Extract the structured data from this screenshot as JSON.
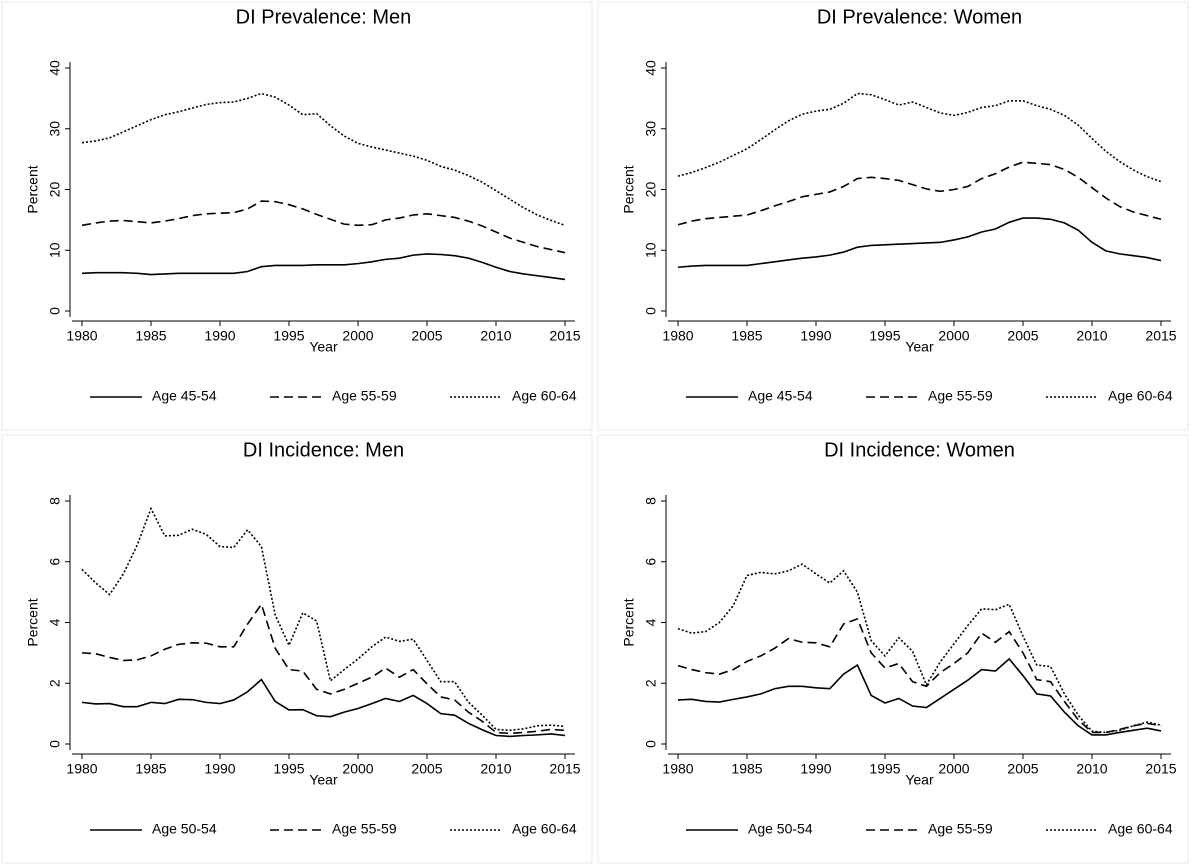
{
  "chart_data": [
    {
      "type": "line",
      "title": "DI Prevalence: Men",
      "xlabel": "Year",
      "ylabel": "Percent",
      "x": [
        1980,
        1981,
        1982,
        1983,
        1984,
        1985,
        1986,
        1987,
        1988,
        1989,
        1990,
        1991,
        1992,
        1993,
        1994,
        1995,
        1996,
        1997,
        1998,
        1999,
        2000,
        2001,
        2002,
        2003,
        2004,
        2005,
        2006,
        2007,
        2008,
        2009,
        2010,
        2011,
        2012,
        2013,
        2014,
        2015
      ],
      "xlim": [
        1980,
        2015
      ],
      "xticks": [
        1980,
        1985,
        1990,
        1995,
        2000,
        2005,
        2010,
        2015
      ],
      "ylim": [
        0,
        40
      ],
      "yticks": [
        0,
        10,
        20,
        30,
        40
      ],
      "series": [
        {
          "name": "Age 45-54",
          "color": "#000000",
          "dash": "solid",
          "values": [
            6.2,
            6.3,
            6.3,
            6.3,
            6.2,
            6.0,
            6.1,
            6.2,
            6.2,
            6.2,
            6.2,
            6.2,
            6.5,
            7.3,
            7.5,
            7.5,
            7.5,
            7.6,
            7.6,
            7.6,
            7.8,
            8.1,
            8.5,
            8.7,
            9.2,
            9.4,
            9.3,
            9.1,
            8.7,
            8.0,
            7.2,
            6.5,
            6.1,
            5.8,
            5.5,
            5.2
          ]
        },
        {
          "name": "Age 55-59",
          "color": "#000000",
          "dash": "dashed",
          "values": [
            14.1,
            14.5,
            14.8,
            14.9,
            14.7,
            14.5,
            14.8,
            15.2,
            15.7,
            16.0,
            16.1,
            16.2,
            16.8,
            18.1,
            18.0,
            17.5,
            16.8,
            15.9,
            15.1,
            14.3,
            14.1,
            14.2,
            15.0,
            15.3,
            15.8,
            16.0,
            15.7,
            15.4,
            14.8,
            14.0,
            13.0,
            12.0,
            11.3,
            10.6,
            10.1,
            9.6
          ]
        },
        {
          "name": "Age 60-64",
          "color": "#000000",
          "dash": "dotted",
          "values": [
            27.7,
            28.0,
            28.5,
            29.5,
            30.5,
            31.5,
            32.3,
            32.8,
            33.4,
            34.0,
            34.3,
            34.4,
            35.0,
            35.8,
            35.2,
            33.9,
            32.3,
            32.5,
            30.5,
            28.8,
            27.6,
            27.0,
            26.5,
            26.0,
            25.5,
            24.8,
            23.8,
            23.2,
            22.3,
            21.2,
            19.8,
            18.4,
            17.0,
            15.8,
            14.9,
            14.1
          ]
        }
      ]
    },
    {
      "type": "line",
      "title": "DI Prevalence: Women",
      "xlabel": "Year",
      "ylabel": "Percent",
      "x": [
        1980,
        1981,
        1982,
        1983,
        1984,
        1985,
        1986,
        1987,
        1988,
        1989,
        1990,
        1991,
        1992,
        1993,
        1994,
        1995,
        1996,
        1997,
        1998,
        1999,
        2000,
        2001,
        2002,
        2003,
        2004,
        2005,
        2006,
        2007,
        2008,
        2009,
        2010,
        2011,
        2012,
        2013,
        2014,
        2015
      ],
      "xlim": [
        1980,
        2015
      ],
      "xticks": [
        1980,
        1985,
        1990,
        1995,
        2000,
        2005,
        2010,
        2015
      ],
      "ylim": [
        0,
        40
      ],
      "yticks": [
        0,
        10,
        20,
        30,
        40
      ],
      "series": [
        {
          "name": "Age 45-54",
          "color": "#000000",
          "dash": "solid",
          "values": [
            7.2,
            7.4,
            7.5,
            7.5,
            7.5,
            7.5,
            7.8,
            8.1,
            8.4,
            8.7,
            8.9,
            9.2,
            9.7,
            10.5,
            10.8,
            10.9,
            11.0,
            11.1,
            11.2,
            11.3,
            11.7,
            12.2,
            13.0,
            13.5,
            14.6,
            15.3,
            15.3,
            15.1,
            14.5,
            13.3,
            11.3,
            9.9,
            9.4,
            9.1,
            8.8,
            8.3
          ]
        },
        {
          "name": "Age 55-59",
          "color": "#000000",
          "dash": "dashed",
          "values": [
            14.2,
            14.8,
            15.2,
            15.4,
            15.6,
            15.8,
            16.5,
            17.3,
            18.0,
            18.8,
            19.2,
            19.6,
            20.5,
            21.8,
            22.0,
            21.8,
            21.5,
            20.8,
            20.1,
            19.7,
            20.0,
            20.5,
            21.8,
            22.6,
            23.7,
            24.5,
            24.3,
            24.1,
            23.3,
            22.0,
            20.3,
            18.6,
            17.2,
            16.3,
            15.7,
            15.1
          ]
        },
        {
          "name": "Age 60-64",
          "color": "#000000",
          "dash": "dotted",
          "values": [
            22.2,
            22.8,
            23.6,
            24.5,
            25.6,
            26.7,
            28.2,
            29.8,
            31.3,
            32.4,
            32.9,
            33.2,
            34.2,
            35.8,
            35.6,
            34.8,
            33.9,
            34.4,
            33.5,
            32.6,
            32.2,
            32.7,
            33.5,
            33.8,
            34.6,
            34.6,
            33.8,
            33.2,
            32.2,
            30.6,
            28.4,
            26.3,
            24.6,
            23.2,
            22.1,
            21.3
          ]
        }
      ]
    },
    {
      "type": "line",
      "title": "DI Incidence: Men",
      "xlabel": "Year",
      "ylabel": "Percent",
      "x": [
        1980,
        1981,
        1982,
        1983,
        1984,
        1985,
        1986,
        1987,
        1988,
        1989,
        1990,
        1991,
        1992,
        1993,
        1994,
        1995,
        1996,
        1997,
        1998,
        1999,
        2000,
        2001,
        2002,
        2003,
        2004,
        2005,
        2006,
        2007,
        2008,
        2009,
        2010,
        2011,
        2012,
        2013,
        2014,
        2015
      ],
      "xlim": [
        1980,
        2015
      ],
      "xticks": [
        1980,
        1985,
        1990,
        1995,
        2000,
        2005,
        2010,
        2015
      ],
      "ylim": [
        0,
        8
      ],
      "yticks": [
        0,
        2,
        4,
        6,
        8
      ],
      "series": [
        {
          "name": "Age 50-54",
          "color": "#000000",
          "dash": "solid",
          "values": [
            1.37,
            1.32,
            1.33,
            1.23,
            1.23,
            1.37,
            1.33,
            1.47,
            1.46,
            1.37,
            1.33,
            1.45,
            1.72,
            2.12,
            1.4,
            1.12,
            1.13,
            0.93,
            0.9,
            1.05,
            1.17,
            1.33,
            1.5,
            1.4,
            1.6,
            1.33,
            1.0,
            0.95,
            0.68,
            0.47,
            0.28,
            0.25,
            0.28,
            0.3,
            0.33,
            0.28
          ]
        },
        {
          "name": "Age 55-59",
          "color": "#000000",
          "dash": "dashed",
          "values": [
            3.0,
            2.97,
            2.85,
            2.75,
            2.77,
            2.9,
            3.12,
            3.28,
            3.33,
            3.32,
            3.2,
            3.2,
            3.95,
            4.6,
            3.15,
            2.45,
            2.4,
            1.8,
            1.65,
            1.8,
            2.0,
            2.2,
            2.5,
            2.2,
            2.45,
            1.98,
            1.55,
            1.45,
            1.05,
            0.75,
            0.38,
            0.35,
            0.38,
            0.42,
            0.48,
            0.45
          ]
        },
        {
          "name": "Age 60-64",
          "color": "#000000",
          "dash": "dotted",
          "values": [
            5.75,
            5.3,
            4.92,
            5.6,
            6.55,
            7.75,
            6.85,
            6.87,
            7.07,
            6.9,
            6.5,
            6.47,
            7.05,
            6.5,
            4.25,
            3.25,
            4.32,
            4.05,
            2.08,
            2.45,
            2.8,
            3.2,
            3.52,
            3.38,
            3.45,
            2.75,
            2.05,
            2.05,
            1.38,
            0.95,
            0.48,
            0.45,
            0.5,
            0.6,
            0.62,
            0.58
          ]
        }
      ]
    },
    {
      "type": "line",
      "title": "DI Incidence: Women",
      "xlabel": "Year",
      "ylabel": "Percent",
      "x": [
        1980,
        1981,
        1982,
        1983,
        1984,
        1985,
        1986,
        1987,
        1988,
        1989,
        1990,
        1991,
        1992,
        1993,
        1994,
        1995,
        1996,
        1997,
        1998,
        1999,
        2000,
        2001,
        2002,
        2003,
        2004,
        2005,
        2006,
        2007,
        2008,
        2009,
        2010,
        2011,
        2012,
        2013,
        2014,
        2015
      ],
      "xlim": [
        1980,
        2015
      ],
      "xticks": [
        1980,
        1985,
        1990,
        1995,
        2000,
        2005,
        2010,
        2015
      ],
      "ylim": [
        0,
        8
      ],
      "yticks": [
        0,
        2,
        4,
        6,
        8
      ],
      "series": [
        {
          "name": "Age 50-54",
          "color": "#000000",
          "dash": "solid",
          "values": [
            1.45,
            1.47,
            1.4,
            1.38,
            1.47,
            1.55,
            1.65,
            1.82,
            1.9,
            1.9,
            1.85,
            1.82,
            2.3,
            2.6,
            1.6,
            1.35,
            1.5,
            1.25,
            1.2,
            1.5,
            1.8,
            2.1,
            2.45,
            2.4,
            2.8,
            2.25,
            1.65,
            1.58,
            1.05,
            0.6,
            0.3,
            0.3,
            0.38,
            0.45,
            0.52,
            0.43
          ]
        },
        {
          "name": "Age 55-59",
          "color": "#000000",
          "dash": "dashed",
          "values": [
            2.58,
            2.45,
            2.35,
            2.3,
            2.45,
            2.72,
            2.9,
            3.15,
            3.47,
            3.35,
            3.33,
            3.2,
            3.95,
            4.12,
            3.0,
            2.5,
            2.65,
            2.05,
            1.9,
            2.35,
            2.65,
            3.0,
            3.65,
            3.35,
            3.7,
            3.0,
            2.12,
            2.05,
            1.4,
            0.8,
            0.38,
            0.38,
            0.48,
            0.6,
            0.68,
            0.6
          ]
        },
        {
          "name": "Age 60-64",
          "color": "#000000",
          "dash": "dotted",
          "values": [
            3.8,
            3.65,
            3.7,
            4.0,
            4.55,
            5.55,
            5.65,
            5.6,
            5.7,
            5.92,
            5.6,
            5.3,
            5.7,
            5.0,
            3.4,
            2.9,
            3.5,
            3.05,
            1.95,
            2.7,
            3.3,
            3.9,
            4.45,
            4.42,
            4.6,
            3.55,
            2.6,
            2.55,
            1.65,
            0.95,
            0.42,
            0.38,
            0.45,
            0.6,
            0.72,
            0.62
          ]
        }
      ]
    }
  ]
}
